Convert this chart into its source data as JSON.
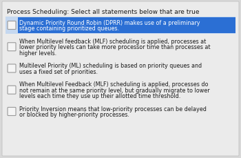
{
  "title": "Process Scheduling: Select all statements below that are true",
  "title_fontsize": 6.5,
  "bg_color": "#d8d8d8",
  "item_bg": "#e8e8e8",
  "selected_highlight": "#2b6fd4",
  "selected_row_bg": "#c5d8f0",
  "checkbox_border": "#999999",
  "checkbox_fill": "#f5f5f5",
  "text_dark": "#1a1a1a",
  "text_selected": "#ffffff",
  "item_fontsize": 5.8,
  "items": [
    {
      "lines": [
        "Dynamic Priority Round Robin (DPRR) makes use of a preliminary",
        "stage containing prioritized queues."
      ],
      "selected": true
    },
    {
      "lines": [
        "When Multilevel feedback (MLF) scheduling is applied, processes at",
        "lower priority levels can take more processor time than processes at",
        "higher levels."
      ],
      "selected": false
    },
    {
      "lines": [
        "Multilevel Priority (ML) scheduling is based on priority queues and",
        "uses a fixed set of priorities."
      ],
      "selected": false
    },
    {
      "lines": [
        "When Multilevel Feedback (MLF) scheduling is applied, processes do",
        "not remain at the same priority level, but gradually migrate to lower",
        "levels each time they use up their allotted time threshold."
      ],
      "selected": false
    },
    {
      "lines": [
        "Priority Inversion means that low-priority processes can be delayed",
        "or blocked by higher-priority processes."
      ],
      "selected": false
    }
  ]
}
